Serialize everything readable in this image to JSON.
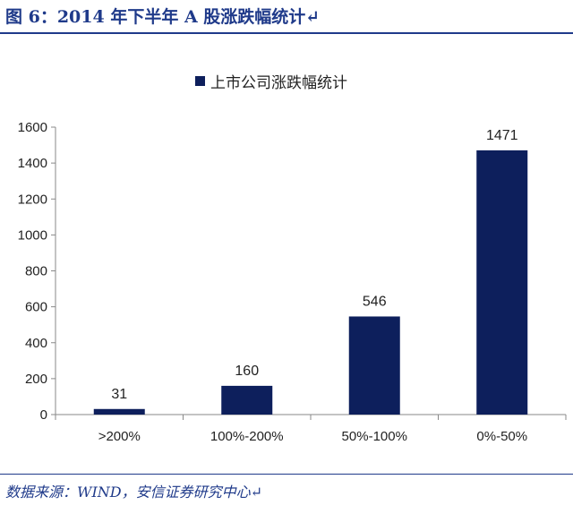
{
  "header": {
    "title": "图 6：2014 年下半年 A 股涨跌幅统计↵"
  },
  "source": {
    "text": "数据来源：WIND，安信证券研究中心↵"
  },
  "chart_data": {
    "type": "bar",
    "categories": [
      ">200%",
      "100%-200%",
      "50%-100%",
      "0%-50%"
    ],
    "series": [
      {
        "name": "上市公司涨跌幅统计",
        "values": [
          31,
          160,
          546,
          1471
        ],
        "color": "#0d1f5c"
      }
    ],
    "data_labels": [
      "31",
      "160",
      "546",
      "1471"
    ],
    "yticks": [
      0,
      200,
      400,
      600,
      800,
      1000,
      1200,
      1400,
      1600
    ],
    "ylim": [
      0,
      1600
    ],
    "grid": false,
    "legend_position": "top-center"
  }
}
